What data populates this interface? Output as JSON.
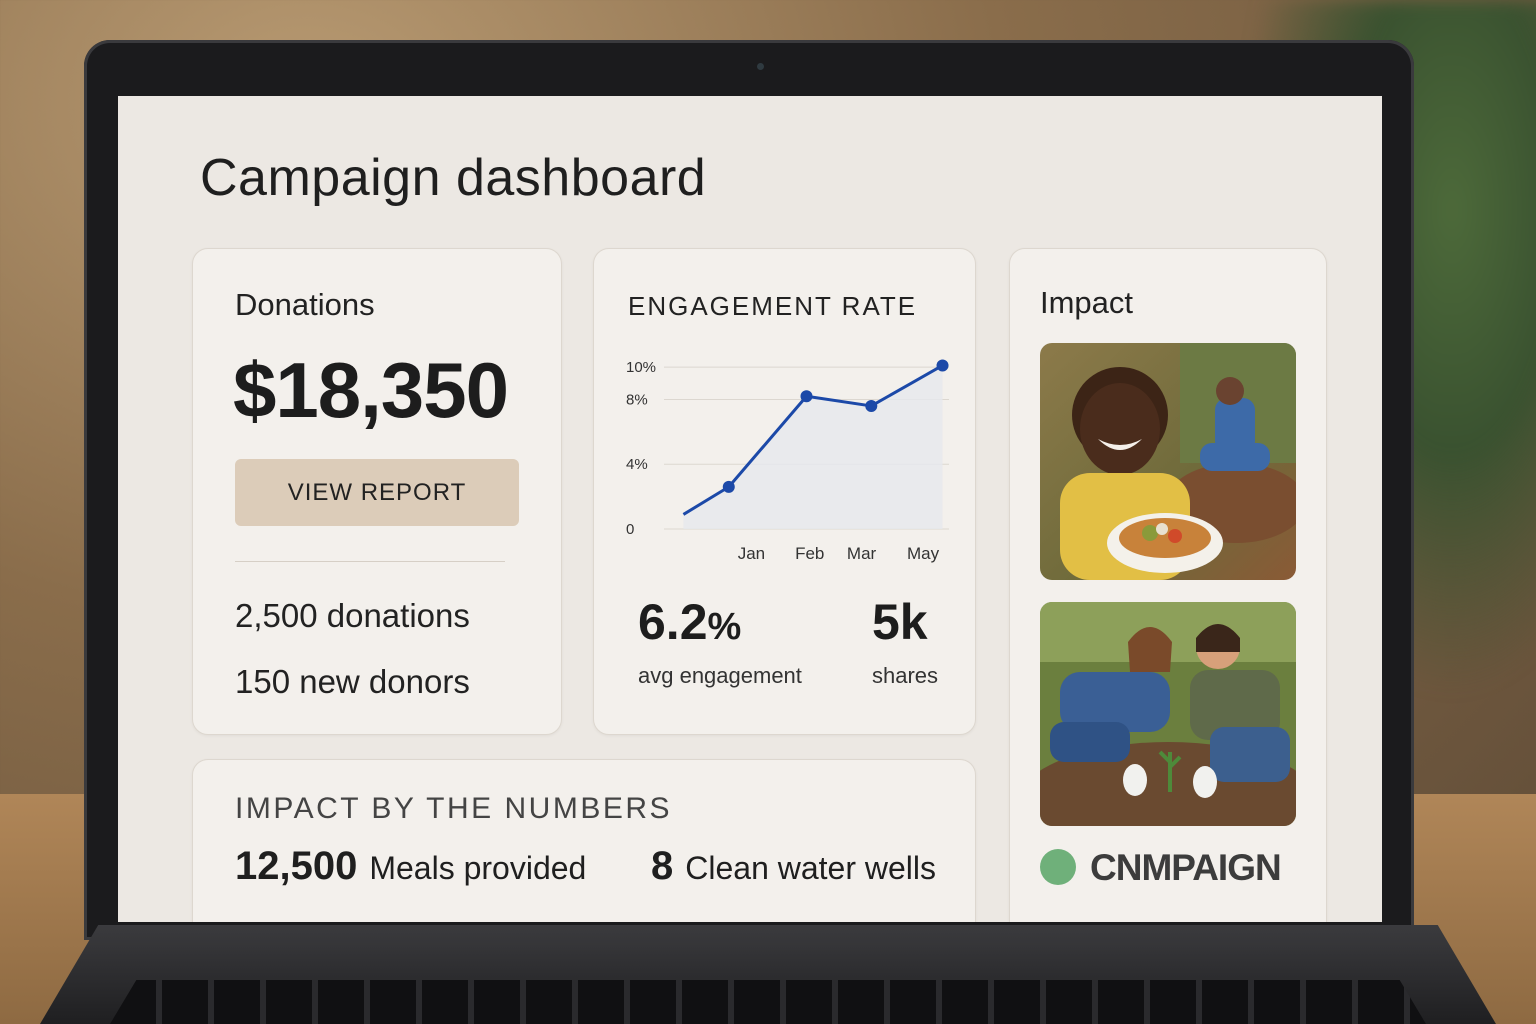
{
  "page": {
    "title": "Campaign dashboard"
  },
  "donations": {
    "title": "Donations",
    "amount": "$18,350",
    "button_label": "VIEW REPORT",
    "stats": [
      "2,500 donations",
      "150 new donors"
    ]
  },
  "engagement": {
    "title": "ENGAGEMENT RATE",
    "avg_value": "6.2",
    "avg_unit": "%",
    "avg_label": "avg engagement",
    "shares_value": "5k",
    "shares_label": "shares"
  },
  "chart_data": {
    "type": "line",
    "title": "ENGAGEMENT RATE",
    "categories": [
      "Jan",
      "Feb",
      "Mar",
      "May"
    ],
    "x": [
      0.5,
      1,
      2,
      3,
      4,
      5
    ],
    "y_ticks": [
      0,
      4,
      8,
      10
    ],
    "y_tick_labels": [
      "0",
      "4%",
      "8%",
      "10%"
    ],
    "series": [
      {
        "x": [
          0.3,
          1,
          2.2,
          3.2,
          4.3
        ],
        "values": [
          0.9,
          2.6,
          8.2,
          7.6,
          10.1
        ]
      }
    ],
    "ylim": [
      0,
      10.5
    ],
    "grid": true,
    "colors": {
      "line": "#1c49a8",
      "fill": "#e6e8ee"
    }
  },
  "impact": {
    "title": "Impact",
    "photos": [
      "child-with-food-photo",
      "volunteers-planting-photo"
    ],
    "brand": "CNMPAIGN",
    "brand_color": "#6fb07a"
  },
  "numbers": {
    "title": "IMPACT BY THE NUMBERS",
    "items": [
      {
        "value": "12,500",
        "label": "Meals provided"
      },
      {
        "value": "8",
        "label": "Clean water wells"
      }
    ]
  }
}
